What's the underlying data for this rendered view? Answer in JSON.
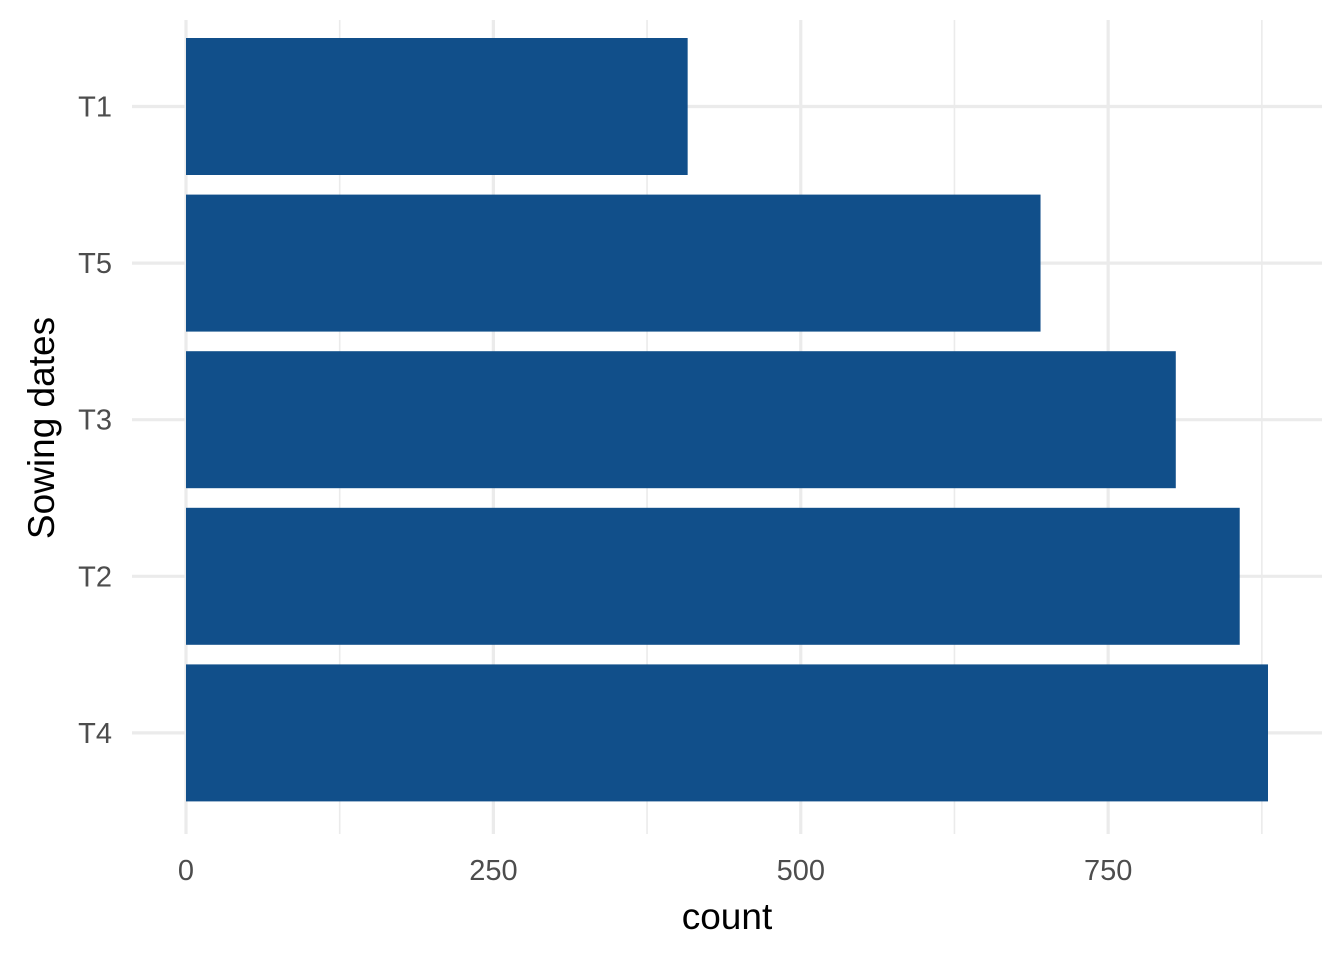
{
  "chart_data": {
    "type": "bar",
    "orientation": "horizontal",
    "categories": [
      "T1",
      "T5",
      "T3",
      "T2",
      "T4"
    ],
    "values": [
      408,
      695,
      805,
      857,
      880
    ],
    "xlabel": "count",
    "ylabel": "Sowing dates",
    "xlim": [
      0,
      880
    ],
    "x_ticks": [
      0,
      250,
      500,
      750
    ],
    "x_tick_labels": [
      "0",
      "250",
      "500",
      "750"
    ],
    "grid": true,
    "bar_color": "#114f8a"
  }
}
